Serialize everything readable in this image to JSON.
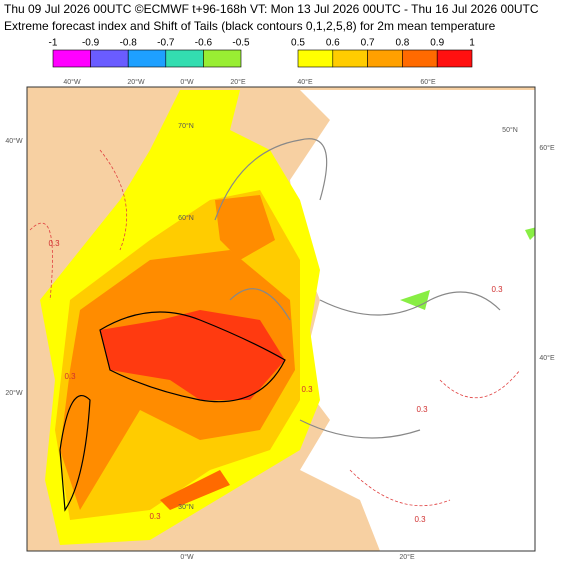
{
  "header": {
    "line1": "Thu 09 Jul 2026 00UTC ©ECMWF t+96-168h  VT: Mon 13 Jul 2026 00UTC - Thu 16 Jul 2026 00UTC",
    "line2": "Extreme forecast index and Shift of Tails (black contours 0,1,2,5,8) for 2m mean temperature"
  },
  "legend": {
    "negative": {
      "labels": [
        "-1",
        "-0.9",
        "-0.8",
        "-0.7",
        "-0.6",
        "-0.5"
      ],
      "colors": [
        "#ff00ff",
        "#6a5cff",
        "#1ea0ff",
        "#33ddb0",
        "#99ee33"
      ]
    },
    "positive": {
      "labels": [
        "0.5",
        "0.6",
        "0.7",
        "0.8",
        "0.9",
        "1"
      ],
      "colors": [
        "#ffff00",
        "#ffcc00",
        "#ffa000",
        "#ff6a00",
        "#ff1010"
      ]
    }
  },
  "map": {
    "top_labels": [
      "40°W",
      "20°W",
      "0°W",
      "20°E",
      "40°E",
      "60°E"
    ],
    "left_labels": [
      "40°W",
      "20°W"
    ],
    "right_labels": [
      "60°E",
      "40°E"
    ],
    "bottom_labels": [
      "0°W",
      "20°E"
    ],
    "inner_labels": [
      "70°N",
      "60°N",
      "50°N",
      "30°N"
    ],
    "contour_labels": [
      "0.3",
      "0.3",
      "0.3",
      "0.3",
      "0.3",
      "0.3",
      "0.3"
    ]
  }
}
